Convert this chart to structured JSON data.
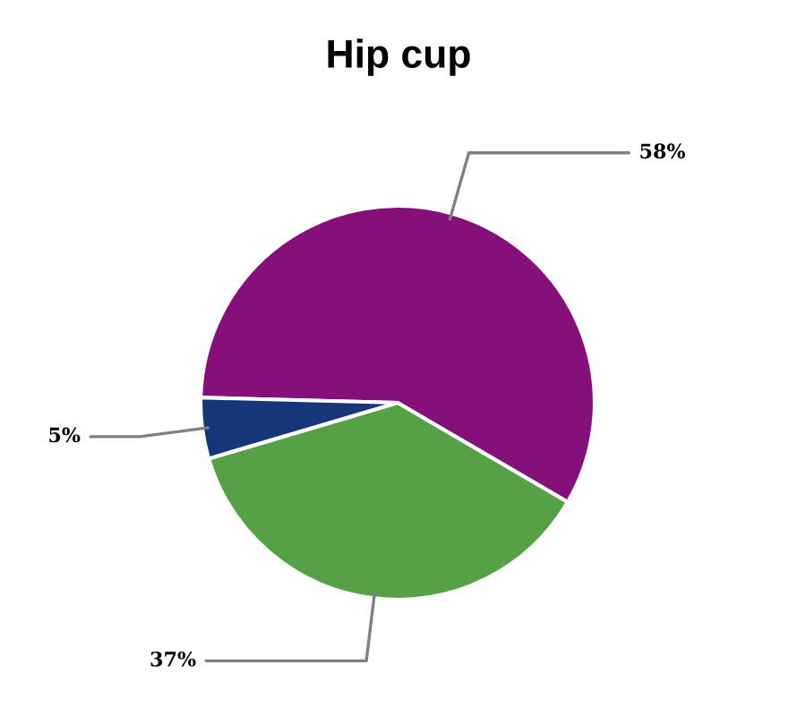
{
  "chart_data": {
    "type": "pie",
    "title": "Hip cup",
    "categories": [
      null,
      null,
      null
    ],
    "values": [
      58,
      37,
      5
    ],
    "colors": [
      "#86107a",
      "#56a146",
      "#17367a"
    ],
    "value_labels": [
      "58%",
      "37%",
      "5%"
    ]
  }
}
